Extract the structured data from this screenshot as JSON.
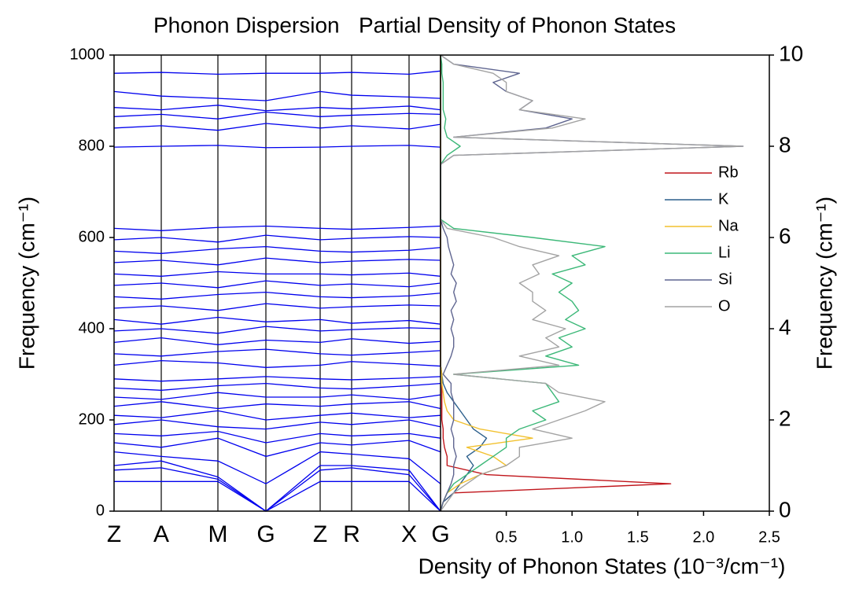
{
  "chart_data": [
    {
      "type": "line",
      "title": "Phonon Dispersion",
      "ylabel": "Frequency (cm⁻¹)",
      "categories": [
        "Z",
        "A",
        "M",
        "G",
        "Z",
        "R",
        "X",
        "G"
      ],
      "ylim": [
        0,
        1000
      ],
      "yticks": [
        0,
        200,
        400,
        600,
        800,
        1000
      ],
      "series": [
        {
          "color": "#0000ee",
          "values": [
            65,
            65,
            65,
            0,
            65,
            65,
            65,
            0
          ]
        },
        {
          "color": "#0000ee",
          "values": [
            90,
            95,
            70,
            0,
            90,
            95,
            80,
            0
          ]
        },
        {
          "color": "#0000ee",
          "values": [
            100,
            110,
            75,
            0,
            100,
            100,
            90,
            0
          ]
        },
        {
          "color": "#0000ee",
          "values": [
            130,
            120,
            110,
            60,
            130,
            125,
            115,
            60
          ]
        },
        {
          "color": "#0000ee",
          "values": [
            150,
            140,
            160,
            120,
            150,
            145,
            155,
            130
          ]
        },
        {
          "color": "#0000ee",
          "values": [
            170,
            165,
            175,
            150,
            170,
            165,
            170,
            160
          ]
        },
        {
          "color": "#0000ee",
          "values": [
            190,
            200,
            185,
            180,
            195,
            190,
            200,
            185
          ]
        },
        {
          "color": "#0000ee",
          "values": [
            210,
            205,
            220,
            200,
            210,
            215,
            205,
            210
          ]
        },
        {
          "color": "#0000ee",
          "values": [
            230,
            240,
            225,
            235,
            230,
            235,
            240,
            225
          ]
        },
        {
          "color": "#0000ee",
          "values": [
            250,
            245,
            260,
            250,
            250,
            255,
            245,
            255
          ]
        },
        {
          "color": "#0000ee",
          "values": [
            270,
            265,
            275,
            280,
            270,
            268,
            275,
            280
          ]
        },
        {
          "color": "#0000ee",
          "values": [
            290,
            285,
            290,
            295,
            290,
            288,
            292,
            295
          ]
        },
        {
          "color": "#0000ee",
          "values": [
            320,
            330,
            325,
            315,
            320,
            328,
            322,
            318
          ]
        },
        {
          "color": "#0000ee",
          "values": [
            345,
            340,
            350,
            355,
            345,
            342,
            348,
            352
          ]
        },
        {
          "color": "#0000ee",
          "values": [
            370,
            380,
            365,
            375,
            370,
            378,
            368,
            372
          ]
        },
        {
          "color": "#0000ee",
          "values": [
            395,
            400,
            390,
            405,
            395,
            398,
            402,
            400
          ]
        },
        {
          "color": "#0000ee",
          "values": [
            420,
            410,
            425,
            415,
            420,
            412,
            418,
            410
          ]
        },
        {
          "color": "#0000ee",
          "values": [
            445,
            450,
            440,
            455,
            445,
            448,
            452,
            450
          ]
        },
        {
          "color": "#0000ee",
          "values": [
            470,
            465,
            475,
            480,
            470,
            468,
            472,
            478
          ]
        },
        {
          "color": "#0000ee",
          "values": [
            495,
            500,
            490,
            505,
            495,
            498,
            492,
            500
          ]
        },
        {
          "color": "#0000ee",
          "values": [
            520,
            515,
            525,
            520,
            520,
            518,
            522,
            515
          ]
        },
        {
          "color": "#0000ee",
          "values": [
            545,
            550,
            540,
            555,
            545,
            548,
            552,
            550
          ]
        },
        {
          "color": "#0000ee",
          "values": [
            570,
            565,
            575,
            580,
            570,
            568,
            572,
            578
          ]
        },
        {
          "color": "#0000ee",
          "values": [
            595,
            600,
            590,
            605,
            595,
            598,
            602,
            600
          ]
        },
        {
          "color": "#0000ee",
          "values": [
            620,
            615,
            622,
            625,
            620,
            618,
            622,
            625
          ]
        },
        {
          "color": "#0000ee",
          "values": [
            798,
            800,
            802,
            797,
            798,
            800,
            802,
            798
          ]
        },
        {
          "color": "#0000ee",
          "values": [
            840,
            845,
            835,
            850,
            840,
            845,
            838,
            848
          ]
        },
        {
          "color": "#0000ee",
          "values": [
            865,
            870,
            860,
            875,
            865,
            868,
            872,
            870
          ]
        },
        {
          "color": "#0000ee",
          "values": [
            885,
            880,
            890,
            878,
            885,
            882,
            888,
            880
          ]
        },
        {
          "color": "#0000ee",
          "values": [
            920,
            910,
            905,
            900,
            920,
            912,
            908,
            905
          ]
        },
        {
          "color": "#0000ee",
          "values": [
            960,
            962,
            958,
            960,
            960,
            962,
            958,
            965
          ]
        }
      ]
    },
    {
      "type": "dos",
      "title": "Partial Density of Phonon States",
      "xlabel": "Density of Phonon States (10⁻³/cm⁻¹)",
      "y2label": "Frequency (cm⁻¹)",
      "xlim": [
        0,
        2.5
      ],
      "xticks": [
        0.5,
        {
          "value": 1,
          "label": "1.0"
        },
        1.5,
        {
          "value": 2,
          "label": "2.0"
        },
        2.5
      ],
      "y2lim": [
        0,
        10
      ],
      "y2ticks": [
        0,
        2,
        4,
        6,
        8,
        10
      ],
      "y": [
        0,
        0.2,
        0.4,
        0.6,
        0.8,
        1,
        1.2,
        1.4,
        1.6,
        1.8,
        2,
        2.2,
        2.4,
        2.6,
        2.8,
        3,
        3.2,
        3.4,
        3.6,
        3.8,
        4,
        4.2,
        4.4,
        4.6,
        4.8,
        5,
        5.2,
        5.4,
        5.6,
        5.8,
        6,
        6.2,
        6.4,
        6.6,
        6.8,
        7,
        7.2,
        7.4,
        7.6,
        7.8,
        8,
        8.2,
        8.4,
        8.6,
        8.8,
        9,
        9.2,
        9.4,
        9.6,
        9.8,
        10
      ],
      "series": [
        {
          "name": "Rb",
          "color": "#c0151b",
          "values": [
            0,
            0.02,
            0.1,
            1.75,
            0.35,
            0.05,
            0.05,
            0.03,
            0.02,
            0.02,
            0.01,
            0.01,
            0.01,
            0.01,
            0.01,
            0.01,
            0,
            0,
            0,
            0,
            0,
            0,
            0,
            0,
            0,
            0,
            0,
            0,
            0,
            0,
            0,
            0,
            0,
            0,
            0,
            0,
            0,
            0,
            0,
            0,
            0,
            0,
            0,
            0,
            0,
            0,
            0,
            0,
            0,
            0,
            0
          ]
        },
        {
          "name": "K",
          "color": "#2c5f8c",
          "values": [
            0,
            0.02,
            0.1,
            0.15,
            0.2,
            0.25,
            0.2,
            0.3,
            0.35,
            0.25,
            0.2,
            0.15,
            0.1,
            0.05,
            0.02,
            0.01,
            0,
            0,
            0,
            0,
            0,
            0,
            0,
            0,
            0,
            0,
            0,
            0,
            0,
            0,
            0,
            0,
            0,
            0,
            0,
            0,
            0,
            0,
            0,
            0,
            0,
            0,
            0,
            0,
            0,
            0,
            0,
            0,
            0,
            0,
            0
          ]
        },
        {
          "name": "Na",
          "color": "#f2c12e",
          "values": [
            0,
            0.02,
            0.05,
            0.15,
            0.3,
            0.5,
            0.4,
            0.2,
            0.7,
            0.3,
            0.1,
            0.05,
            0.03,
            0.02,
            0.01,
            0.01,
            0,
            0,
            0,
            0,
            0,
            0,
            0,
            0,
            0,
            0,
            0,
            0,
            0,
            0,
            0,
            0,
            0,
            0,
            0,
            0,
            0,
            0,
            0,
            0,
            0,
            0,
            0,
            0,
            0,
            0,
            0,
            0,
            0,
            0,
            0
          ]
        },
        {
          "name": "Li",
          "color": "#3cb878",
          "values": [
            0,
            0.02,
            0.05,
            0.1,
            0.2,
            0.3,
            0.4,
            0.5,
            0.5,
            0.6,
            0.8,
            0.7,
            0.9,
            0.85,
            0.8,
            0.1,
            1.05,
            0.8,
            1.0,
            0.9,
            1.1,
            0.95,
            1.05,
            1.0,
            0.9,
            1.0,
            0.85,
            1.1,
            1.0,
            1.25,
            0.7,
            0.1,
            0,
            0,
            0,
            0,
            0,
            0,
            0,
            0.05,
            0.15,
            0.05,
            0.03,
            0.04,
            0.02,
            0.02,
            0.02,
            0.02,
            0.01,
            0.01,
            0
          ]
        },
        {
          "name": "Si",
          "color": "#5f6590",
          "values": [
            0,
            0.02,
            0.05,
            0.08,
            0.1,
            0.1,
            0.12,
            0.1,
            0.1,
            0.08,
            0.1,
            0.1,
            0.1,
            0.08,
            0.08,
            0.02,
            0.05,
            0.08,
            0.1,
            0.1,
            0.08,
            0.1,
            0.08,
            0.12,
            0.1,
            0.12,
            0.08,
            0.1,
            0.08,
            0.06,
            0.05,
            0.02,
            0,
            0,
            0,
            0,
            0,
            0,
            0,
            0.1,
            2.3,
            0.1,
            0.8,
            1.0,
            0.6,
            0.7,
            0.5,
            0.4,
            0.6,
            0.1,
            0
          ]
        },
        {
          "name": "O",
          "color": "#a3a3a3",
          "values": [
            0,
            0.05,
            0.1,
            0.2,
            0.3,
            0.5,
            0.6,
            0.6,
            1.0,
            0.7,
            0.9,
            1.1,
            1.25,
            0.9,
            0.8,
            0.1,
            0.9,
            0.6,
            0.9,
            0.8,
            0.95,
            0.7,
            0.8,
            0.7,
            0.7,
            0.6,
            0.75,
            0.7,
            0.9,
            0.6,
            0.4,
            0.05,
            0,
            0,
            0,
            0,
            0,
            0,
            0,
            0.1,
            2.3,
            0.1,
            0.85,
            1.1,
            0.6,
            0.7,
            0.5,
            0.5,
            0.4,
            0.1,
            0
          ]
        }
      ]
    }
  ]
}
